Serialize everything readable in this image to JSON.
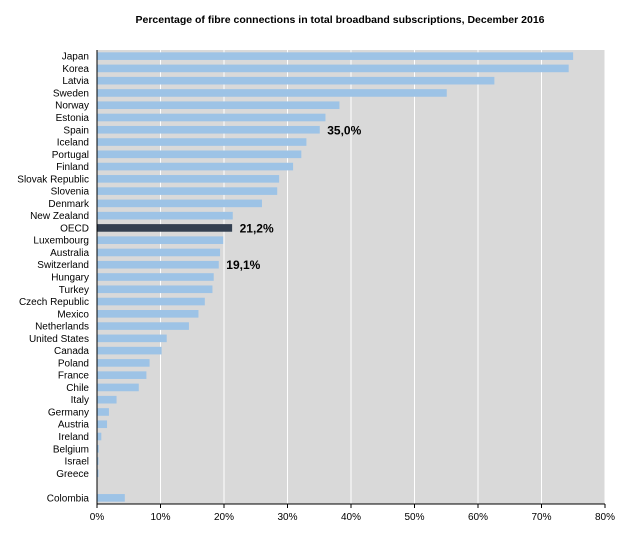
{
  "chart_data": {
    "type": "bar",
    "orientation": "horizontal",
    "title": "Percentage of fibre connections in total broadband subscriptions, December 2016",
    "xlabel": "",
    "ylabel": "",
    "xlim": [
      0,
      80
    ],
    "tick_step": 10,
    "tick_labels": [
      "0%",
      "10%",
      "20%",
      "30%",
      "40%",
      "50%",
      "60%",
      "70%",
      "80%"
    ],
    "grid": true,
    "categories": [
      "Japan",
      "Korea",
      "Latvia",
      "Sweden",
      "Norway",
      "Estonia",
      "Spain",
      "Iceland",
      "Portugal",
      "Finland",
      "Slovak Republic",
      "Slovenia",
      "Denmark",
      "New Zealand",
      "OECD",
      "Luxembourg",
      "Australia",
      "Switzerland",
      "Hungary",
      "Turkey",
      "Czech Republic",
      "Mexico",
      "Netherlands",
      "United States",
      "Canada",
      "Poland",
      "France",
      "Chile",
      "Italy",
      "Germany",
      "Austria",
      "Ireland",
      "Belgium",
      "Israel",
      "Greece",
      "",
      "Colombia"
    ],
    "values": [
      74.9,
      74.2,
      62.5,
      55.0,
      38.1,
      35.9,
      35.0,
      32.9,
      32.1,
      30.8,
      28.6,
      28.3,
      25.9,
      21.3,
      21.2,
      19.8,
      19.3,
      19.1,
      18.3,
      18.1,
      16.9,
      15.9,
      14.4,
      10.9,
      10.1,
      8.2,
      7.7,
      6.5,
      3.0,
      1.8,
      1.5,
      0.6,
      0.2,
      0.1,
      0.1,
      null,
      4.3
    ],
    "highlight_index": 14,
    "data_labels": [
      {
        "category": "Spain",
        "text": "35,0%"
      },
      {
        "category": "OECD",
        "text": "21,2%"
      },
      {
        "category": "Switzerland",
        "text": "19,1%"
      }
    ],
    "colors": {
      "bar": "#9dc3e6",
      "highlight_bar": "#333f50",
      "plot_background": "#d9d9d9",
      "grid": "#ffffff"
    }
  }
}
